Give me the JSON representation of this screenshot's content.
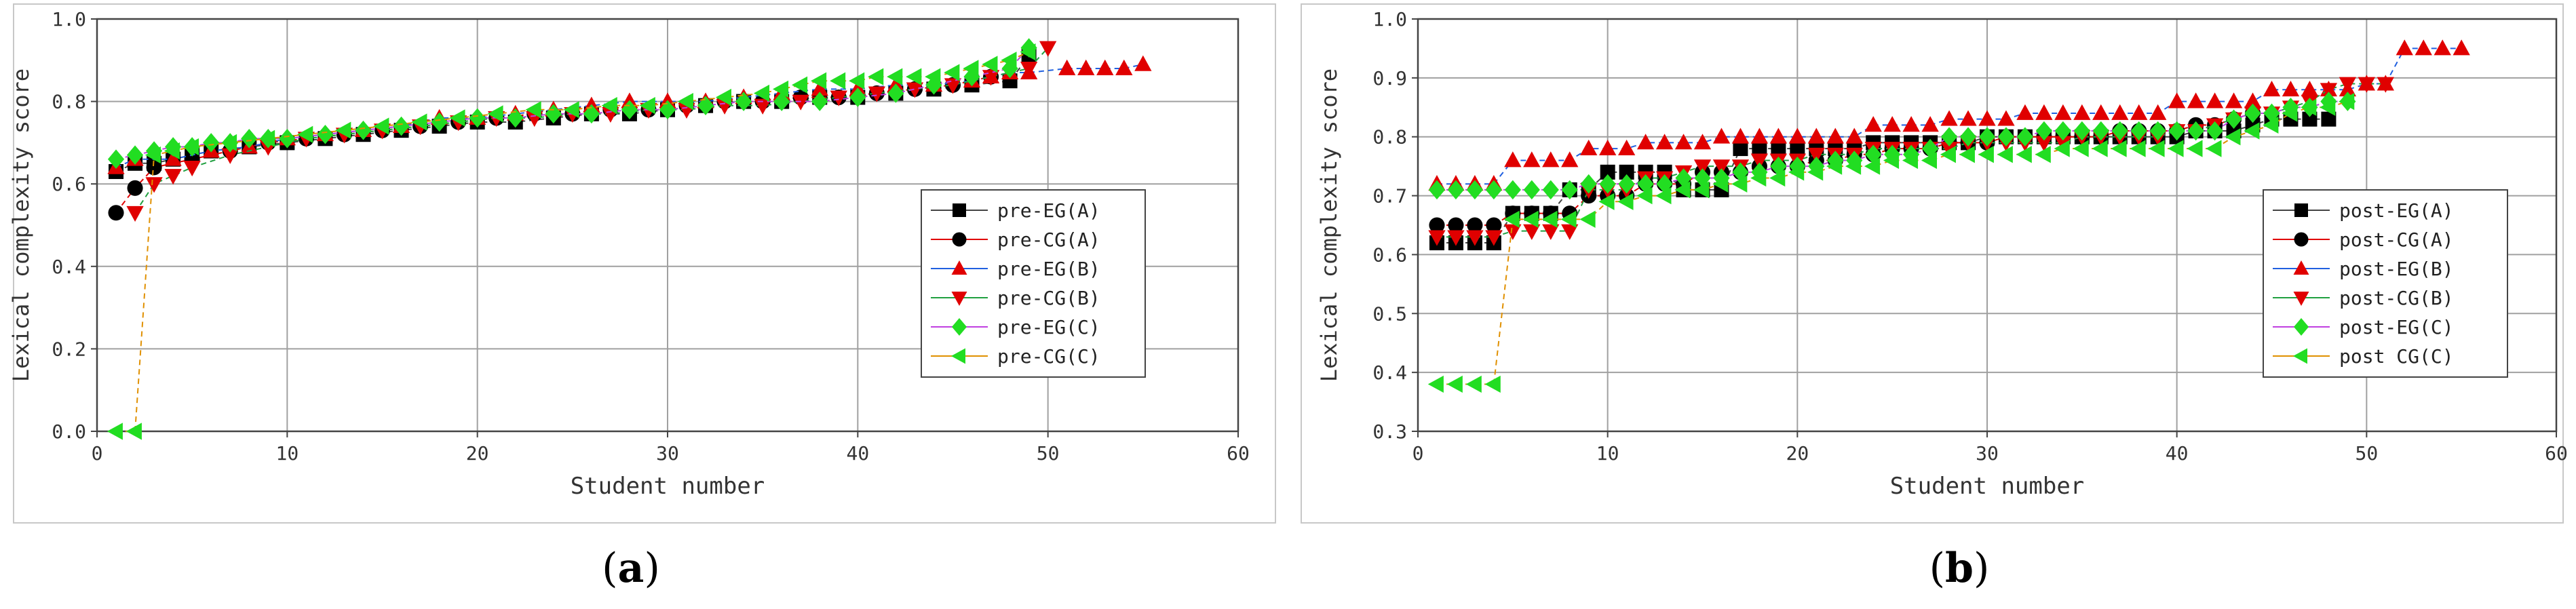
{
  "chart_data": [
    {
      "type": "scatter",
      "panel_label": "(a)",
      "panel_letter": "a",
      "xlabel": "Student number",
      "ylabel": "Lexical complexity score",
      "xlim": [
        0,
        60
      ],
      "ylim": [
        0.0,
        1.0
      ],
      "xticks": [
        "0",
        "10",
        "20",
        "30",
        "40",
        "50",
        "60"
      ],
      "yticks": [
        "0.0",
        "0.2",
        "0.4",
        "0.6",
        "0.8",
        "1.0"
      ],
      "grid": true,
      "legend_position": "lower-right",
      "series": [
        {
          "name": "pre-EG(A)",
          "marker": "square",
          "color": "#000000",
          "x": [
            1,
            2,
            3,
            4,
            5,
            6,
            8,
            10,
            12,
            14,
            16,
            18,
            20,
            22,
            24,
            26,
            28,
            30,
            32,
            34,
            36,
            38,
            40,
            42,
            44,
            46,
            48,
            49
          ],
          "y": [
            0.63,
            0.65,
            0.65,
            0.66,
            0.67,
            0.68,
            0.69,
            0.7,
            0.71,
            0.72,
            0.73,
            0.74,
            0.75,
            0.75,
            0.76,
            0.77,
            0.77,
            0.78,
            0.79,
            0.8,
            0.8,
            0.81,
            0.81,
            0.82,
            0.83,
            0.84,
            0.85,
            0.91
          ]
        },
        {
          "name": "pre-CG(A)",
          "marker": "circle",
          "color": "#000000",
          "x": [
            1,
            2,
            3,
            5,
            7,
            9,
            11,
            13,
            15,
            17,
            19,
            21,
            23,
            25,
            27,
            29,
            31,
            33,
            35,
            37,
            39,
            41,
            43,
            45,
            47
          ],
          "y": [
            0.53,
            0.59,
            0.64,
            0.66,
            0.68,
            0.7,
            0.71,
            0.72,
            0.73,
            0.74,
            0.75,
            0.76,
            0.77,
            0.77,
            0.78,
            0.78,
            0.79,
            0.8,
            0.8,
            0.81,
            0.81,
            0.82,
            0.83,
            0.84,
            0.86
          ]
        },
        {
          "name": "pre-EG(B)",
          "marker": "triangle-up",
          "color": "#e00000",
          "x": [
            1,
            2,
            4,
            6,
            8,
            10,
            12,
            14,
            16,
            18,
            20,
            22,
            24,
            26,
            28,
            30,
            32,
            34,
            36,
            38,
            40,
            42,
            44,
            46,
            47,
            48,
            49,
            51,
            52,
            53,
            54,
            55
          ],
          "y": [
            0.64,
            0.66,
            0.66,
            0.68,
            0.69,
            0.71,
            0.72,
            0.73,
            0.74,
            0.76,
            0.76,
            0.77,
            0.78,
            0.79,
            0.8,
            0.8,
            0.8,
            0.81,
            0.82,
            0.83,
            0.83,
            0.84,
            0.84,
            0.85,
            0.86,
            0.87,
            0.87,
            0.88,
            0.88,
            0.88,
            0.88,
            0.89
          ]
        },
        {
          "name": "pre-CG(B)",
          "marker": "triangle-down",
          "color": "#e00000",
          "x": [
            2,
            3,
            4,
            5,
            7,
            9,
            11,
            13,
            15,
            17,
            19,
            21,
            23,
            25,
            27,
            29,
            31,
            33,
            35,
            37,
            39,
            41,
            43,
            45,
            47,
            49,
            50
          ],
          "y": [
            0.53,
            0.6,
            0.62,
            0.64,
            0.67,
            0.69,
            0.71,
            0.72,
            0.73,
            0.74,
            0.75,
            0.76,
            0.76,
            0.77,
            0.77,
            0.78,
            0.78,
            0.79,
            0.79,
            0.8,
            0.81,
            0.82,
            0.83,
            0.84,
            0.86,
            0.88,
            0.93
          ]
        },
        {
          "name": "pre-EG(C)",
          "marker": "diamond",
          "color": "#22dd22",
          "x": [
            1,
            2,
            3,
            4,
            5,
            6,
            7,
            8,
            9,
            10,
            12,
            14,
            16,
            18,
            20,
            22,
            24,
            26,
            28,
            30,
            32,
            34,
            36,
            38,
            40,
            42,
            44,
            46,
            48,
            49
          ],
          "y": [
            0.66,
            0.67,
            0.68,
            0.69,
            0.69,
            0.7,
            0.7,
            0.71,
            0.71,
            0.71,
            0.72,
            0.73,
            0.74,
            0.75,
            0.76,
            0.76,
            0.77,
            0.77,
            0.78,
            0.78,
            0.79,
            0.8,
            0.8,
            0.8,
            0.81,
            0.82,
            0.84,
            0.86,
            0.88,
            0.93
          ]
        },
        {
          "name": "pre-CG(C)",
          "marker": "triangle-left",
          "color": "#22dd22",
          "x": [
            1,
            2,
            3,
            4,
            5,
            7,
            9,
            11,
            13,
            15,
            17,
            19,
            21,
            23,
            25,
            27,
            29,
            31,
            33,
            35,
            36,
            37,
            38,
            39,
            40,
            41,
            42,
            43,
            44,
            45,
            46,
            47,
            48,
            49
          ],
          "y": [
            0.0,
            0.0,
            0.67,
            0.68,
            0.69,
            0.7,
            0.71,
            0.72,
            0.73,
            0.74,
            0.75,
            0.76,
            0.77,
            0.78,
            0.78,
            0.79,
            0.79,
            0.8,
            0.81,
            0.82,
            0.83,
            0.84,
            0.85,
            0.85,
            0.85,
            0.86,
            0.86,
            0.86,
            0.86,
            0.87,
            0.88,
            0.89,
            0.9,
            0.92
          ]
        }
      ]
    },
    {
      "type": "scatter",
      "panel_label": "(b)",
      "panel_letter": "b",
      "xlabel": "Student number",
      "ylabel": "Lexical complexity score",
      "xlim": [
        0,
        60
      ],
      "ylim": [
        0.3,
        1.0
      ],
      "xticks": [
        "0",
        "10",
        "20",
        "30",
        "40",
        "50",
        "60"
      ],
      "yticks": [
        "0.3",
        "0.4",
        "0.5",
        "0.6",
        "0.7",
        "0.8",
        "0.9",
        "1.0"
      ],
      "grid": true,
      "legend_position": "lower-right",
      "series": [
        {
          "name": "post-EG(A)",
          "marker": "square",
          "color": "#000000",
          "x": [
            1,
            2,
            3,
            4,
            5,
            6,
            7,
            8,
            9,
            10,
            11,
            12,
            13,
            14,
            15,
            16,
            17,
            18,
            19,
            20,
            21,
            22,
            23,
            24,
            25,
            26,
            27,
            28,
            29,
            30,
            31,
            32,
            33,
            34,
            35,
            36,
            37,
            38,
            39,
            40,
            41,
            42,
            43,
            44,
            45,
            46,
            47,
            48
          ],
          "y": [
            0.62,
            0.62,
            0.62,
            0.62,
            0.67,
            0.67,
            0.67,
            0.71,
            0.71,
            0.74,
            0.74,
            0.74,
            0.74,
            0.71,
            0.71,
            0.71,
            0.78,
            0.78,
            0.78,
            0.78,
            0.78,
            0.78,
            0.78,
            0.79,
            0.79,
            0.79,
            0.79,
            0.79,
            0.79,
            0.8,
            0.8,
            0.8,
            0.8,
            0.8,
            0.8,
            0.8,
            0.8,
            0.8,
            0.8,
            0.8,
            0.81,
            0.81,
            0.81,
            0.82,
            0.83,
            0.83,
            0.83,
            0.83
          ]
        },
        {
          "name": "post-CG(A)",
          "marker": "circle",
          "color": "#000000",
          "x": [
            1,
            2,
            3,
            4,
            5,
            6,
            7,
            8,
            9,
            10,
            11,
            12,
            13,
            14,
            15,
            16,
            17,
            18,
            19,
            20,
            21,
            22,
            23,
            24,
            25,
            26,
            27,
            28,
            29,
            30,
            31,
            32,
            33,
            34,
            35,
            36,
            37,
            38,
            39,
            40,
            41,
            42,
            43,
            44
          ],
          "y": [
            0.65,
            0.65,
            0.65,
            0.65,
            0.67,
            0.67,
            0.67,
            0.67,
            0.7,
            0.7,
            0.7,
            0.72,
            0.72,
            0.72,
            0.74,
            0.74,
            0.74,
            0.75,
            0.75,
            0.75,
            0.76,
            0.76,
            0.77,
            0.77,
            0.78,
            0.78,
            0.78,
            0.79,
            0.79,
            0.79,
            0.8,
            0.8,
            0.8,
            0.8,
            0.8,
            0.8,
            0.81,
            0.81,
            0.81,
            0.81,
            0.82,
            0.82,
            0.83,
            0.84
          ]
        },
        {
          "name": "post-EG(B)",
          "marker": "triangle-up",
          "color": "#e00000",
          "x": [
            1,
            2,
            3,
            4,
            5,
            6,
            7,
            8,
            9,
            10,
            11,
            12,
            13,
            14,
            15,
            16,
            17,
            18,
            19,
            20,
            21,
            22,
            23,
            24,
            25,
            26,
            27,
            28,
            29,
            30,
            31,
            32,
            33,
            34,
            35,
            36,
            37,
            38,
            39,
            40,
            41,
            42,
            43,
            44,
            45,
            46,
            47,
            48,
            49,
            50,
            51,
            52,
            53,
            54,
            55
          ],
          "y": [
            0.72,
            0.72,
            0.72,
            0.72,
            0.76,
            0.76,
            0.76,
            0.76,
            0.78,
            0.78,
            0.78,
            0.79,
            0.79,
            0.79,
            0.79,
            0.8,
            0.8,
            0.8,
            0.8,
            0.8,
            0.8,
            0.8,
            0.8,
            0.82,
            0.82,
            0.82,
            0.82,
            0.83,
            0.83,
            0.83,
            0.83,
            0.84,
            0.84,
            0.84,
            0.84,
            0.84,
            0.84,
            0.84,
            0.84,
            0.86,
            0.86,
            0.86,
            0.86,
            0.86,
            0.88,
            0.88,
            0.88,
            0.88,
            0.88,
            0.89,
            0.89,
            0.95,
            0.95,
            0.95,
            0.95
          ]
        },
        {
          "name": "post-CG(B)",
          "marker": "triangle-down",
          "color": "#e00000",
          "x": [
            1,
            2,
            3,
            4,
            5,
            6,
            7,
            8,
            9,
            10,
            11,
            12,
            13,
            14,
            15,
            16,
            17,
            18,
            19,
            20,
            21,
            22,
            23,
            24,
            25,
            26,
            27,
            28,
            29,
            30,
            31,
            32,
            33,
            34,
            35,
            36,
            37,
            38,
            39,
            40,
            41,
            42,
            43,
            44,
            45,
            46,
            47,
            48,
            49,
            50,
            51
          ],
          "y": [
            0.63,
            0.63,
            0.63,
            0.63,
            0.64,
            0.64,
            0.64,
            0.64,
            0.71,
            0.71,
            0.71,
            0.73,
            0.73,
            0.74,
            0.75,
            0.75,
            0.75,
            0.76,
            0.76,
            0.76,
            0.77,
            0.77,
            0.77,
            0.78,
            0.78,
            0.78,
            0.78,
            0.78,
            0.79,
            0.79,
            0.79,
            0.79,
            0.79,
            0.79,
            0.8,
            0.8,
            0.8,
            0.8,
            0.8,
            0.81,
            0.81,
            0.82,
            0.83,
            0.84,
            0.84,
            0.85,
            0.86,
            0.88,
            0.89,
            0.89,
            0.89
          ]
        },
        {
          "name": "post-EG(C)",
          "marker": "diamond",
          "color": "#22dd22",
          "x": [
            1,
            2,
            3,
            4,
            5,
            6,
            7,
            8,
            9,
            10,
            11,
            12,
            13,
            14,
            15,
            16,
            17,
            18,
            19,
            20,
            21,
            22,
            23,
            24,
            25,
            26,
            27,
            28,
            29,
            30,
            31,
            32,
            33,
            34,
            35,
            36,
            37,
            38,
            39,
            40,
            41,
            42,
            43,
            44,
            45,
            46,
            47,
            48,
            49
          ],
          "y": [
            0.71,
            0.71,
            0.71,
            0.71,
            0.71,
            0.71,
            0.71,
            0.71,
            0.72,
            0.72,
            0.72,
            0.72,
            0.72,
            0.73,
            0.73,
            0.73,
            0.74,
            0.74,
            0.75,
            0.75,
            0.75,
            0.76,
            0.76,
            0.77,
            0.77,
            0.77,
            0.78,
            0.8,
            0.8,
            0.8,
            0.8,
            0.8,
            0.81,
            0.81,
            0.81,
            0.81,
            0.81,
            0.81,
            0.81,
            0.81,
            0.81,
            0.81,
            0.83,
            0.84,
            0.84,
            0.85,
            0.85,
            0.86,
            0.86
          ]
        },
        {
          "name": "post CG(C)",
          "marker": "triangle-left",
          "color": "#22dd22",
          "x": [
            1,
            2,
            3,
            4,
            5,
            6,
            7,
            8,
            9,
            10,
            11,
            12,
            13,
            14,
            15,
            16,
            17,
            18,
            19,
            20,
            21,
            22,
            23,
            24,
            25,
            26,
            27,
            28,
            29,
            30,
            31,
            32,
            33,
            34,
            35,
            36,
            37,
            38,
            39,
            40,
            41,
            42,
            43,
            44,
            45,
            46,
            47,
            48,
            49
          ],
          "y": [
            0.38,
            0.38,
            0.38,
            0.38,
            0.66,
            0.66,
            0.66,
            0.66,
            0.66,
            0.69,
            0.69,
            0.7,
            0.7,
            0.71,
            0.71,
            0.72,
            0.72,
            0.73,
            0.73,
            0.74,
            0.74,
            0.75,
            0.75,
            0.75,
            0.76,
            0.76,
            0.76,
            0.77,
            0.77,
            0.77,
            0.77,
            0.77,
            0.77,
            0.78,
            0.78,
            0.78,
            0.78,
            0.78,
            0.78,
            0.78,
            0.78,
            0.78,
            0.8,
            0.81,
            0.82,
            0.84,
            0.85,
            0.85,
            0.86
          ]
        }
      ]
    }
  ]
}
